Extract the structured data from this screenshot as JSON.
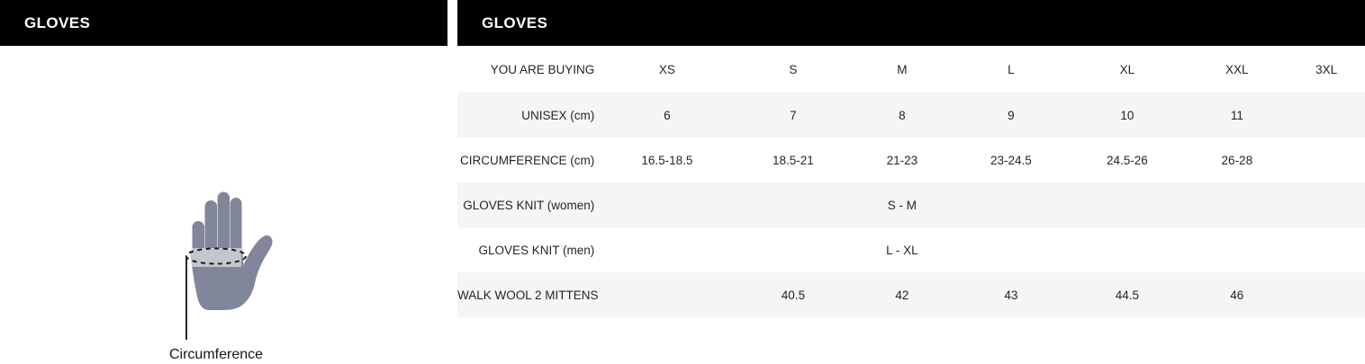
{
  "left_panel": {
    "title": "GLOVES",
    "illustration": {
      "label": "Circumference"
    }
  },
  "size_chart": {
    "title": "GLOVES",
    "columns": [
      "YOU ARE BUYING",
      "XS",
      "S",
      "M",
      "L",
      "XL",
      "XXL",
      "3XL"
    ],
    "rows": [
      {
        "label": "UNISEX (cm)",
        "values": [
          "6",
          "7",
          "8",
          "9",
          "10",
          "11",
          ""
        ]
      },
      {
        "label": "CIRCUMFERENCE (cm)",
        "values": [
          "16.5-18.5",
          "18.5-21",
          "21-23",
          "23-24.5",
          "24.5-26",
          "26-28",
          ""
        ]
      },
      {
        "label": "GLOVES KNIT (women)",
        "values": [
          "",
          "",
          "S - M",
          "",
          "",
          "",
          ""
        ]
      },
      {
        "label": "GLOVES KNIT (men)",
        "values": [
          "",
          "",
          "L - XL",
          "",
          "",
          "",
          ""
        ]
      },
      {
        "label": "WALK WOOL 2 MITTENS",
        "values": [
          "",
          "40.5",
          "42",
          "43",
          "44.5",
          "46",
          ""
        ]
      }
    ]
  },
  "colors": {
    "header_bg": "#000000",
    "header_text": "#ffffff",
    "row_stripe": "#f5f5f5",
    "cell_text": "#23252b",
    "hand_fill": "#82869a",
    "hand_band": "#c4c6cd",
    "dash_stroke": "#1c1c1c"
  }
}
